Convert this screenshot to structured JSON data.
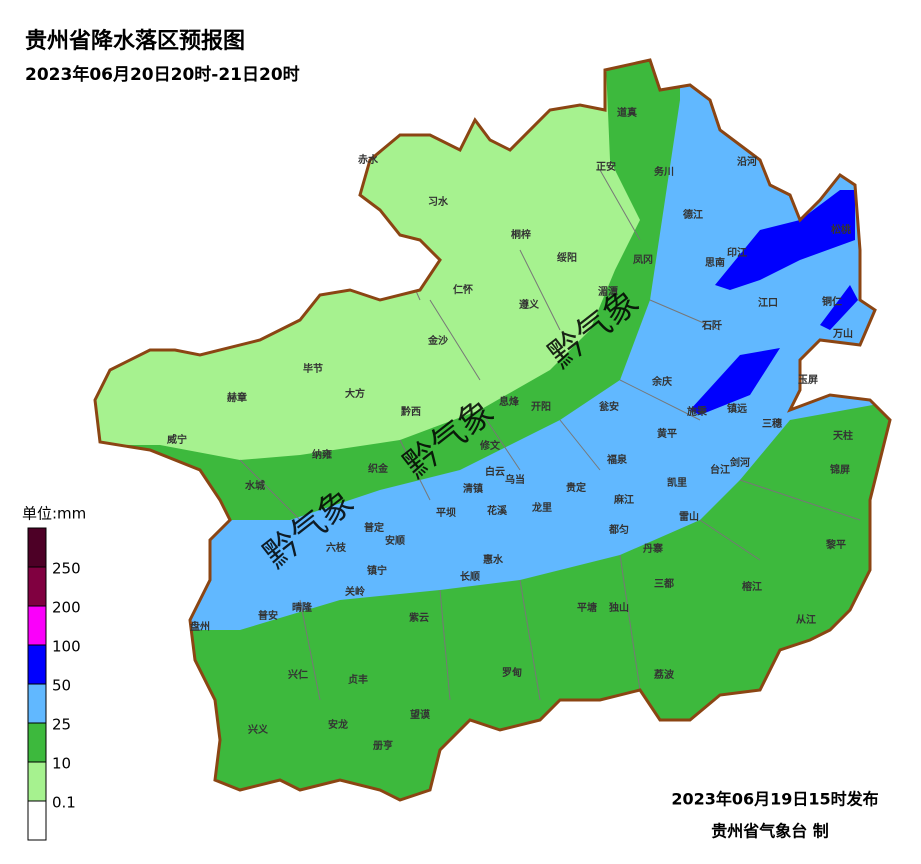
{
  "title": "贵州省降水落区预报图",
  "subtitle": "2023年06月20日20时-21日20时",
  "legend": {
    "unit": "单位:mm",
    "labels": [
      "250",
      "200",
      "100",
      "50",
      "25",
      "10",
      "0.1"
    ],
    "colors": [
      "#4d0026",
      "#800040",
      "#fa00fa",
      "#0000fe",
      "#61b8ff",
      "#3db93d",
      "#a6f28f",
      "#ffffff"
    ]
  },
  "watermark": "黔气象",
  "counties": [
    "赤水",
    "习水",
    "桐梓",
    "正安",
    "道真",
    "务川",
    "沿河",
    "德江",
    "印江",
    "松桃",
    "思南",
    "绥阳",
    "凤冈",
    "仁怀",
    "遵义",
    "湄潭",
    "江口",
    "铜仁",
    "金沙",
    "石阡",
    "万山",
    "毕节",
    "大方",
    "余庆",
    "玉屏",
    "赫章",
    "黔西",
    "息烽",
    "开阳",
    "瓮安",
    "施秉",
    "镇远",
    "三穗",
    "天柱",
    "威宁",
    "纳雍",
    "修文",
    "黄平",
    "织金",
    "白云",
    "清镇",
    "乌当",
    "福泉",
    "剑河",
    "台江",
    "锦屏",
    "水城",
    "凯里",
    "贵定",
    "麻江",
    "龙里",
    "花溪",
    "平坝",
    "雷山",
    "普定",
    "安顺",
    "都匀",
    "惠水",
    "六枝",
    "丹寨",
    "黎平",
    "镇宁",
    "长顺",
    "三都",
    "关岭",
    "晴隆",
    "平塘",
    "独山",
    "榕江",
    "普安",
    "紫云",
    "盘州",
    "从江",
    "兴仁",
    "贞丰",
    "罗甸",
    "荔波",
    "望谟",
    "兴义",
    "安龙",
    "册亨"
  ],
  "footer": {
    "issued": "2023年06月19日15时发布",
    "agency": "贵州省气象台 制"
  }
}
